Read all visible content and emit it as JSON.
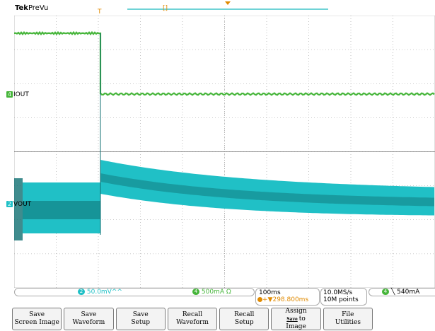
{
  "brand": {
    "name": "Tek",
    "mode": "PreVu"
  },
  "colors": {
    "ch1": "#46b53a",
    "ch2": "#20c0c6",
    "ch2_dark": "#0f6f72",
    "grid": "#9a9a9a",
    "trigger": "#e08a00"
  },
  "markers": {
    "trigger_position": "T",
    "record_window": "[]"
  },
  "channels": [
    {
      "number": "4",
      "name": "IOUT"
    },
    {
      "number": "2",
      "name": "VOUT"
    }
  ],
  "status": {
    "ch2_scale": "50.0mV",
    "ch2_suffix": "^^",
    "ch4_scale": "500mA",
    "ch4_suffix": "Ω",
    "timebase": "100ms",
    "trigger_delay": "+▼298.800ms",
    "sample_rate": "10.0MS/s",
    "record_length": "10M points",
    "trigger_channel": "4",
    "trigger_slope": "╲",
    "trigger_level": "540mA"
  },
  "softkeys": {
    "save_screen_image": [
      "Save",
      "Screen Image"
    ],
    "save_waveform": [
      "Save",
      "Waveform"
    ],
    "save_setup": [
      "Save",
      "Setup"
    ],
    "recall_waveform": [
      "Recall",
      "Waveform"
    ],
    "recall_setup": [
      "Recall",
      "Setup"
    ],
    "assign": {
      "line1": "Assign",
      "key": "Save",
      "line2": "to",
      "line3": "Image"
    },
    "file_utilities": [
      "File",
      "Utilities"
    ]
  }
}
